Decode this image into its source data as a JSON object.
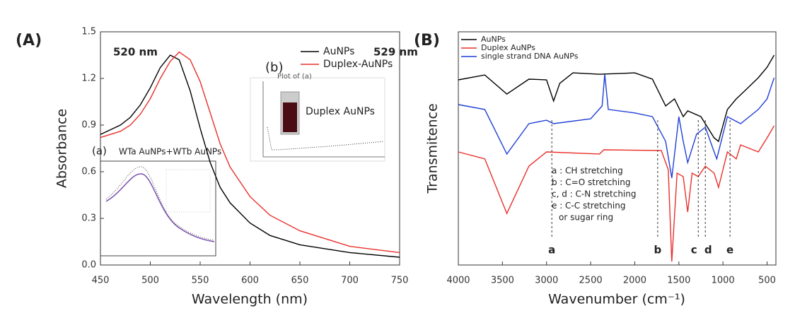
{
  "chart_data": [
    {
      "type": "line",
      "panel": "(A)",
      "xlabel": "Wavelength (nm)",
      "ylabel": "Absorbance",
      "annotations": [
        "520 nm",
        "529 nm"
      ],
      "x": [
        450,
        470,
        480,
        490,
        500,
        510,
        520,
        529,
        540,
        550,
        560,
        570,
        580,
        600,
        620,
        650,
        700,
        750
      ],
      "series": [
        {
          "name": "AuNPs",
          "color": "#000000",
          "values": [
            0.84,
            0.9,
            0.95,
            1.03,
            1.14,
            1.27,
            1.35,
            1.32,
            1.12,
            0.88,
            0.66,
            0.5,
            0.4,
            0.27,
            0.19,
            0.13,
            0.08,
            0.05
          ]
        },
        {
          "name": "Duplex-AuNPs",
          "color": "#e8302b",
          "values": [
            0.82,
            0.86,
            0.9,
            0.97,
            1.07,
            1.2,
            1.31,
            1.37,
            1.32,
            1.18,
            0.98,
            0.78,
            0.63,
            0.44,
            0.32,
            0.22,
            0.12,
            0.08
          ]
        }
      ],
      "xlim": [
        450,
        750
      ],
      "xticks": [
        450,
        500,
        550,
        600,
        650,
        700,
        750
      ],
      "ylim": [
        0,
        1.5
      ],
      "yticks": [
        {
          "value": 0,
          "label": "0.0"
        },
        0.3,
        0.6,
        0.9,
        1.2,
        1.5
      ],
      "insets": [
        {
          "label": "(a)",
          "title": "WTa AuNPs+WTb AuNPs"
        },
        {
          "label": "(b)",
          "title": "Plot of (a)",
          "text": "Duplex AuNPs"
        }
      ]
    },
    {
      "type": "line",
      "panel": "(B)",
      "xlabel": "Wavenumber (cm⁻¹)",
      "ylabel": "Transmitence",
      "series": [
        {
          "name": "AuNPs",
          "color": "#000000",
          "x": [
            4000,
            3700,
            3450,
            3200,
            3000,
            2920,
            2850,
            2700,
            2400,
            2000,
            1800,
            1650,
            1550,
            1450,
            1400,
            1250,
            1100,
            1050,
            950,
            850,
            750,
            600,
            500,
            420
          ],
          "values": [
            79.4,
            81.5,
            73.3,
            79.7,
            79.4,
            70.3,
            77.9,
            82.4,
            81.8,
            82.4,
            79.7,
            68.2,
            71.2,
            63.6,
            66.1,
            63.6,
            54.5,
            53.0,
            66.7,
            71.2,
            74.8,
            80.3,
            84.8,
            90.0
          ]
        },
        {
          "name": "Duplex AuNPs",
          "color": "#e8302b",
          "x": [
            4000,
            3700,
            3450,
            3200,
            3000,
            2400,
            2350,
            1700,
            1620,
            1580,
            1520,
            1450,
            1400,
            1350,
            1280,
            1200,
            1100,
            1050,
            950,
            850,
            800,
            600,
            500,
            420
          ],
          "values": [
            48.5,
            45.5,
            22.1,
            42.4,
            48.5,
            47.6,
            49.4,
            49.1,
            40.9,
            1.5,
            39.4,
            37.9,
            22.7,
            39.4,
            37.9,
            42.4,
            39.4,
            33.3,
            48.5,
            45.5,
            51.5,
            48.5,
            54.5,
            59.7
          ]
        },
        {
          "name": "single strand DNA AuNPs",
          "color": "#1f3fd6",
          "x": [
            4000,
            3700,
            3450,
            3200,
            3000,
            2920,
            2500,
            2370,
            2340,
            2300,
            2000,
            1800,
            1650,
            1580,
            1500,
            1450,
            1400,
            1300,
            1200,
            1100,
            1070,
            950,
            800,
            600,
            500,
            420
          ],
          "values": [
            68.8,
            66.7,
            47.6,
            60.6,
            62.1,
            60.6,
            62.7,
            68.2,
            81.8,
            66.7,
            65.2,
            63.6,
            53.0,
            37.3,
            63.6,
            53.0,
            43.9,
            56.1,
            59.1,
            48.5,
            45.5,
            63.6,
            60.6,
            66.7,
            71.2,
            80.3
          ]
        }
      ],
      "xlim": [
        4000,
        400
      ],
      "xticks": [
        4000,
        3500,
        3000,
        2500,
        2000,
        1500,
        1000,
        500
      ],
      "ylim": [
        0,
        100
      ],
      "markers": [
        {
          "label": "a",
          "x": 2940
        },
        {
          "label": "b",
          "x": 1740
        },
        {
          "label": "c",
          "x": 1280
        },
        {
          "label": "d",
          "x": 1200
        },
        {
          "label": "e",
          "x": 920
        }
      ],
      "notes": [
        "a : CH stretching",
        "b : C=O stretching",
        "c, d : C-N stretching",
        "e : C-C stretching",
        "or sugar ring"
      ]
    }
  ]
}
